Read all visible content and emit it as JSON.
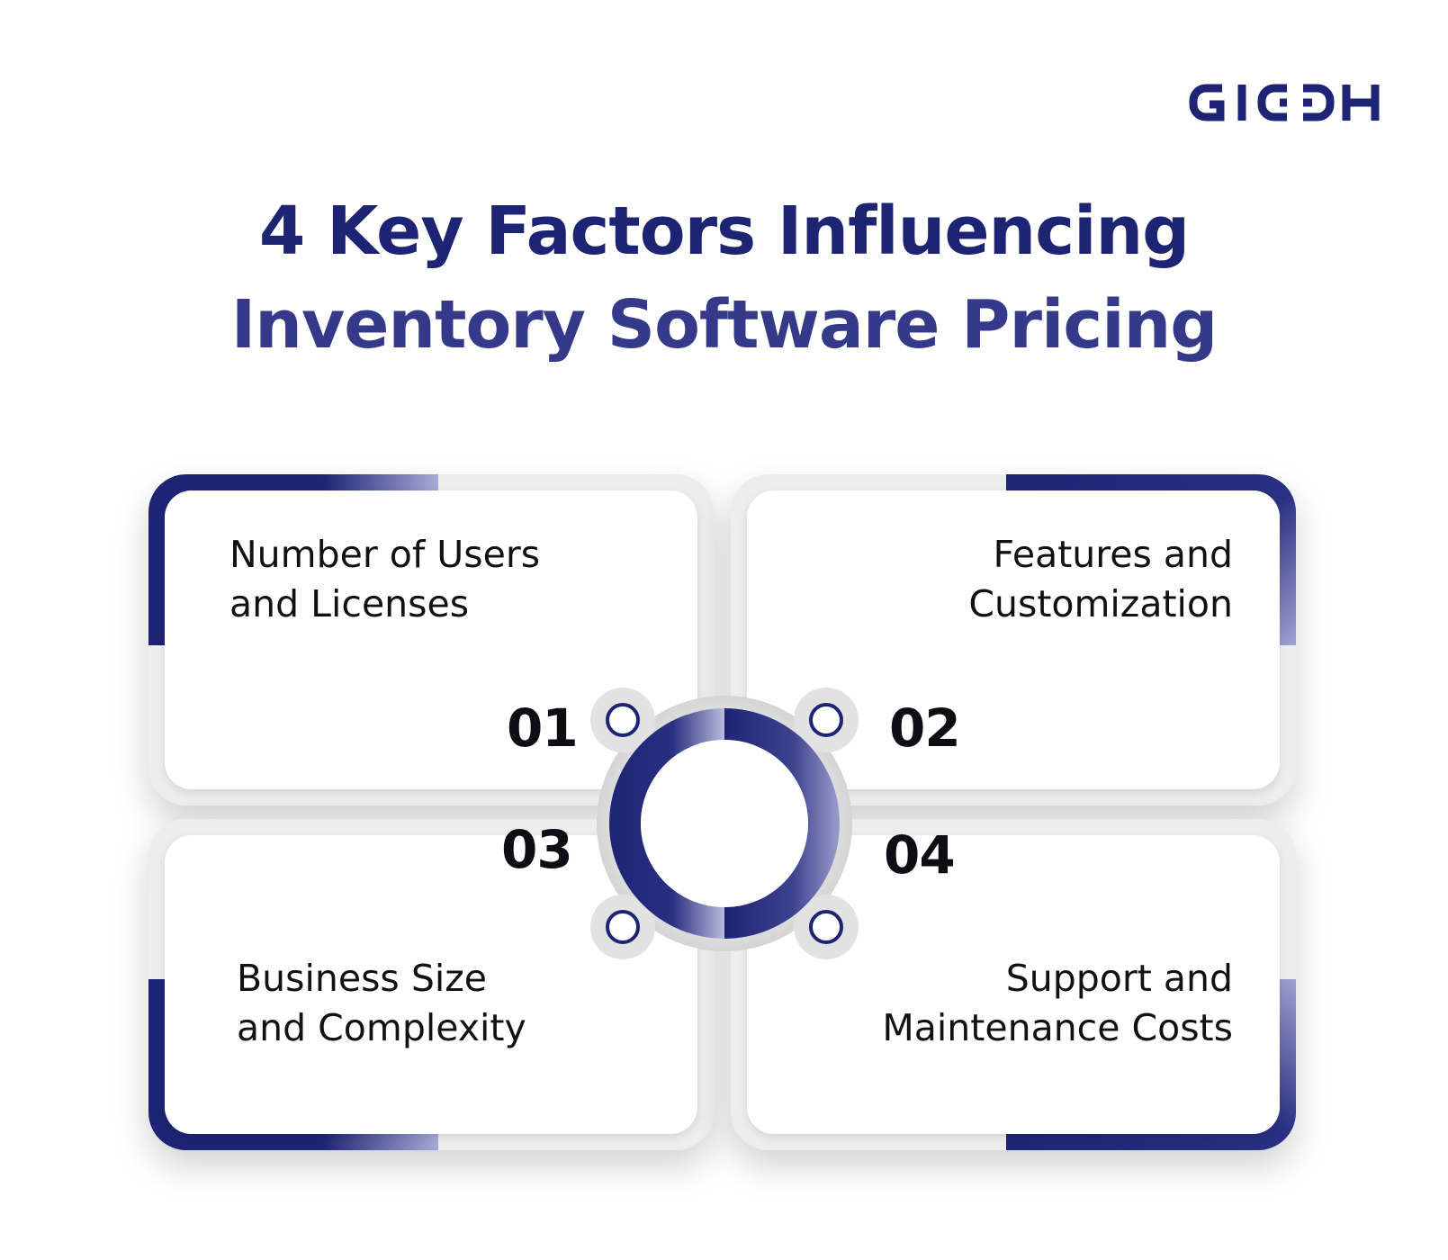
{
  "logo": {
    "text": "GIDDH",
    "color": "#1d2474"
  },
  "title": {
    "line1": "4 Key Factors Influencing",
    "line2": "Inventory Software Pricing"
  },
  "colors": {
    "navy": "#1d2474",
    "accent_light": "#8e92c6",
    "frame": "#ededed",
    "number": "#0d0d14"
  },
  "factors": [
    {
      "number": "01",
      "line1": "Number of Users",
      "line2": "and Licenses"
    },
    {
      "number": "02",
      "line1": "Features and",
      "line2": "Customization"
    },
    {
      "number": "03",
      "line1": "Business Size",
      "line2": "and Complexity"
    },
    {
      "number": "04",
      "line1": "Support and",
      "line2": "Maintenance Costs"
    }
  ]
}
